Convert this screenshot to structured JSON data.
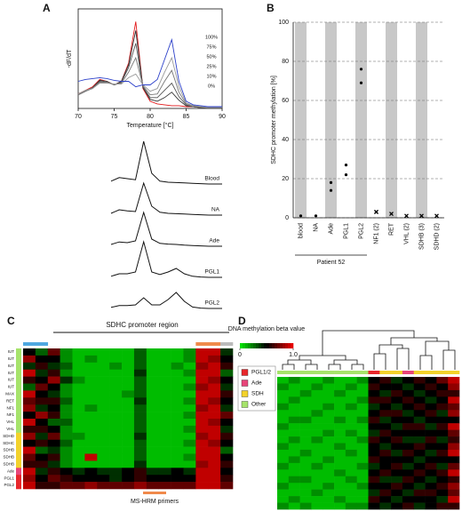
{
  "chart_data": [
    {
      "type": "line",
      "panel": "A",
      "xlabel": "Temperature [°C]",
      "ylabel": "-dF/dT",
      "x": [
        70,
        71,
        72,
        73,
        74,
        75,
        76,
        77,
        78,
        79,
        80,
        81,
        82,
        83,
        84,
        85,
        86,
        87,
        88,
        89,
        90
      ],
      "xlim": [
        70,
        90
      ],
      "xticks": [
        70,
        75,
        80,
        85,
        90
      ],
      "ylim": [
        0,
        11
      ],
      "series": [
        {
          "name": "0%",
          "color": "#e31a1c",
          "values": [
            1.6,
            2.0,
            2.4,
            3.2,
            3.0,
            2.6,
            3.0,
            5.0,
            9.6,
            2.2,
            0.8,
            0.5,
            0.4,
            0.3,
            0.3,
            0.2,
            0.2,
            0.1,
            0.1,
            0.1,
            0.1
          ]
        },
        {
          "name": "10%",
          "color": "#333333",
          "values": [
            1.5,
            1.9,
            2.3,
            3.1,
            3.0,
            2.6,
            3.0,
            4.8,
            8.6,
            2.3,
            1.0,
            0.8,
            1.2,
            1.8,
            0.9,
            0.3,
            0.2,
            0.1,
            0.1,
            0.1,
            0.1
          ]
        },
        {
          "name": "25%",
          "color": "#555555",
          "values": [
            1.5,
            1.9,
            2.3,
            3.0,
            2.9,
            2.6,
            2.9,
            4.5,
            7.2,
            2.4,
            1.2,
            1.2,
            2.0,
            2.8,
            1.3,
            0.4,
            0.2,
            0.1,
            0.1,
            0.1,
            0.1
          ]
        },
        {
          "name": "50%",
          "color": "#777777",
          "values": [
            1.5,
            1.9,
            2.2,
            2.9,
            2.9,
            2.6,
            2.8,
            4.0,
            5.6,
            2.5,
            1.5,
            1.6,
            3.0,
            4.2,
            1.8,
            0.5,
            0.3,
            0.2,
            0.1,
            0.1,
            0.1
          ]
        },
        {
          "name": "75%",
          "color": "#999999",
          "values": [
            1.6,
            2.0,
            2.2,
            2.8,
            2.8,
            2.7,
            2.7,
            3.4,
            3.8,
            2.6,
            1.9,
            2.2,
            4.0,
            5.6,
            2.4,
            0.6,
            0.3,
            0.2,
            0.1,
            0.1,
            0.1
          ]
        },
        {
          "name": "100%",
          "color": "#2b3fc9",
          "values": [
            3.0,
            3.2,
            3.3,
            3.4,
            3.3,
            3.1,
            3.0,
            3.0,
            2.4,
            2.6,
            2.6,
            3.2,
            5.4,
            7.6,
            3.0,
            0.8,
            0.4,
            0.3,
            0.2,
            0.2,
            0.2
          ]
        }
      ]
    },
    {
      "type": "line",
      "x": [
        74,
        75,
        76,
        77,
        78,
        79,
        80,
        81,
        82,
        83,
        84,
        85,
        86
      ],
      "series": [
        {
          "name": "Blood",
          "color": "#111111",
          "values": [
            0.8,
            1.8,
            1.5,
            1.2,
            12,
            3,
            0.8,
            0.5,
            0.4,
            0.3,
            0.2,
            0.1,
            0
          ]
        },
        {
          "name": "NA",
          "color": "#111111",
          "values": [
            0.5,
            1.5,
            1.2,
            1.0,
            9,
            2.5,
            0.8,
            0.5,
            0.4,
            0.3,
            0.2,
            0.1,
            0
          ]
        },
        {
          "name": "Ade",
          "color": "#111111",
          "values": [
            0.5,
            1.2,
            1.0,
            1.5,
            9.5,
            2,
            0.8,
            0.6,
            0.5,
            0.3,
            0.2,
            0.1,
            0
          ]
        },
        {
          "name": "PGL1",
          "color": "#111111",
          "values": [
            0.3,
            1.0,
            1.0,
            1.5,
            10,
            1.5,
            0.8,
            1.5,
            2.5,
            1.0,
            0.3,
            0.1,
            0
          ]
        },
        {
          "name": "PGL2",
          "color": "#111111",
          "values": [
            0.3,
            0.8,
            0.8,
            1.0,
            3,
            1,
            1,
            2.5,
            4.5,
            2,
            0.4,
            0.1,
            0
          ]
        }
      ]
    },
    {
      "type": "scatter",
      "panel": "B",
      "ylabel": "SDHC promoter methylation [%]",
      "group_label": "Patient 52",
      "categories": [
        "blood",
        "NA",
        "Ade",
        "PGL1",
        "PGL2",
        "NF1 (2)",
        "RET",
        "VHL (2)",
        "SDHB (3)",
        "SDHD (2)"
      ],
      "values": [
        [
          1
        ],
        [
          1
        ],
        [
          18,
          14
        ],
        [
          27,
          22
        ],
        [
          76,
          69
        ],
        [
          3,
          3
        ],
        [
          2
        ],
        [
          1
        ],
        [
          1
        ],
        [
          1
        ]
      ],
      "markers": [
        "dot",
        "dot",
        "dot",
        "dot",
        "dot",
        "x",
        "x",
        "x",
        "x",
        "x"
      ],
      "color": "#000000",
      "shade_color": "#c8c8c8",
      "ylim": [
        0,
        100
      ],
      "yticks": [
        0,
        20,
        40,
        60,
        80,
        100
      ],
      "grid": true
    },
    {
      "type": "heatmap",
      "panel": "C",
      "title": "SDHC promoter region",
      "annotation": "MS-HRM primers",
      "zlim": [
        0,
        1
      ],
      "row_labels": [
        "IUT",
        "IUT",
        "IUT",
        "IUT",
        "IUT",
        "IUT",
        "MAX",
        "RET",
        "NF1",
        "NF1",
        "VHL",
        "VHL",
        "SDHD",
        "SDHC",
        "SDHB",
        "SDHB",
        "SDHB",
        "Ade",
        "PGL1",
        "PGL2"
      ],
      "row_colors": [
        "#a6e36b",
        "#a6e36b",
        "#a6e36b",
        "#a6e36b",
        "#a6e36b",
        "#a6e36b",
        "#a6e36b",
        "#a6e36b",
        "#a6e36b",
        "#a6e36b",
        "#a6e36b",
        "#a6e36b",
        "#f3d22b",
        "#f3d22b",
        "#f3d22b",
        "#f3d22b",
        "#f3d22b",
        "#e8457a",
        "#e8262b",
        "#e8262b"
      ],
      "col_colors": [
        "#4fa8e0",
        "#4fa8e0",
        null,
        null,
        null,
        null,
        null,
        null,
        null,
        null,
        null,
        null,
        null,
        null,
        "#f08a4b",
        "#f08a4b",
        "#bbbbbb"
      ],
      "z": [
        [
          0.5,
          0.3,
          0.7,
          0.2,
          0.1,
          0.1,
          0.1,
          0.1,
          0.1,
          0.3,
          0.1,
          0.1,
          0.1,
          0.2,
          0.9,
          0.9,
          0.4
        ],
        [
          0.8,
          0.5,
          0.5,
          0.2,
          0.1,
          0.2,
          0.1,
          0.1,
          0.1,
          0.3,
          0.1,
          0.1,
          0.1,
          0.2,
          0.9,
          0.8,
          0.5
        ],
        [
          0.4,
          0.6,
          0.4,
          0.3,
          0.1,
          0.1,
          0.1,
          0.2,
          0.1,
          0.3,
          0.1,
          0.1,
          0.2,
          0.1,
          0.8,
          0.9,
          0.6
        ],
        [
          0.9,
          0.4,
          0.6,
          0.2,
          0.1,
          0.1,
          0.1,
          0.1,
          0.1,
          0.4,
          0.1,
          0.1,
          0.1,
          0.2,
          0.9,
          0.9,
          0.3
        ],
        [
          0.6,
          0.5,
          0.8,
          0.4,
          0.2,
          0.1,
          0.1,
          0.1,
          0.1,
          0.3,
          0.1,
          0.1,
          0.1,
          0.1,
          0.9,
          0.8,
          0.5
        ],
        [
          0.3,
          0.7,
          0.5,
          0.2,
          0.1,
          0.1,
          0.1,
          0.1,
          0.1,
          0.3,
          0.1,
          0.1,
          0.1,
          0.2,
          0.8,
          0.9,
          0.4
        ],
        [
          0.9,
          0.5,
          0.4,
          0.2,
          0.1,
          0.1,
          0.1,
          0.1,
          0.2,
          0.3,
          0.1,
          0.1,
          0.1,
          0.1,
          0.9,
          0.9,
          0.6
        ],
        [
          0.7,
          0.6,
          0.6,
          0.3,
          0.1,
          0.1,
          0.1,
          0.1,
          0.1,
          0.4,
          0.1,
          0.1,
          0.1,
          0.2,
          0.9,
          0.8,
          0.5
        ],
        [
          0.8,
          0.4,
          0.5,
          0.2,
          0.1,
          0.2,
          0.1,
          0.1,
          0.1,
          0.3,
          0.1,
          0.1,
          0.1,
          0.1,
          0.8,
          0.9,
          0.4
        ],
        [
          0.5,
          0.8,
          0.6,
          0.2,
          0.1,
          0.1,
          0.1,
          0.1,
          0.1,
          0.3,
          0.1,
          0.1,
          0.1,
          0.2,
          0.9,
          0.9,
          0.7
        ],
        [
          0.9,
          0.5,
          0.3,
          0.3,
          0.1,
          0.1,
          0.1,
          0.1,
          0.1,
          0.3,
          0.1,
          0.1,
          0.1,
          0.1,
          0.9,
          0.8,
          0.5
        ],
        [
          0.6,
          0.6,
          0.5,
          0.2,
          0.1,
          0.1,
          0.1,
          0.1,
          0.1,
          0.3,
          0.1,
          0.1,
          0.1,
          0.2,
          0.9,
          0.9,
          0.4
        ],
        [
          0.8,
          0.4,
          0.7,
          0.2,
          0.2,
          0.1,
          0.1,
          0.1,
          0.1,
          0.4,
          0.1,
          0.1,
          0.1,
          0.1,
          0.8,
          0.9,
          0.6
        ],
        [
          0.5,
          0.6,
          0.5,
          0.3,
          0.1,
          0.1,
          0.1,
          0.1,
          0.1,
          0.3,
          0.1,
          0.1,
          0.1,
          0.2,
          0.9,
          0.8,
          0.5
        ],
        [
          0.9,
          0.3,
          0.4,
          0.2,
          0.1,
          0.1,
          0.1,
          0.1,
          0.1,
          0.3,
          0.1,
          0.1,
          0.1,
          0.1,
          0.9,
          0.9,
          0.3
        ],
        [
          0.7,
          0.5,
          0.6,
          0.2,
          0.1,
          0.9,
          0.1,
          0.1,
          0.1,
          0.3,
          0.1,
          0.1,
          0.1,
          0.2,
          0.9,
          0.9,
          0.5
        ],
        [
          0.6,
          0.6,
          0.4,
          0.2,
          0.1,
          0.1,
          0.1,
          0.1,
          0.1,
          0.4,
          0.1,
          0.1,
          0.1,
          0.1,
          0.8,
          0.9,
          0.6
        ],
        [
          0.9,
          0.4,
          0.6,
          0.5,
          0.4,
          0.5,
          0.4,
          0.4,
          0.5,
          0.6,
          0.4,
          0.4,
          0.5,
          0.4,
          0.9,
          0.9,
          0.5
        ],
        [
          0.8,
          0.5,
          0.7,
          0.6,
          0.5,
          0.5,
          0.5,
          0.4,
          0.5,
          0.6,
          0.5,
          0.5,
          0.5,
          0.5,
          0.9,
          0.9,
          0.6
        ],
        [
          0.9,
          0.6,
          0.6,
          0.7,
          0.7,
          0.8,
          0.7,
          0.7,
          0.7,
          0.8,
          0.7,
          0.7,
          0.7,
          0.7,
          0.9,
          0.9,
          0.7
        ]
      ]
    },
    {
      "type": "heatmap",
      "panel": "D",
      "zlim": [
        0,
        1
      ],
      "colorbar": {
        "label": "DNA methylation beta value",
        "ticks": [
          0,
          {
            "value": 1,
            "label": "1.0"
          }
        ]
      },
      "legend": [
        {
          "name": "PGL1/2",
          "color": "#e8262b"
        },
        {
          "name": "Ade",
          "color": "#e8457a"
        },
        {
          "name": "SDH",
          "color": "#f3d22b"
        },
        {
          "name": "Other",
          "color": "#a6e36b"
        }
      ],
      "col_colors": [
        "#a6e36b",
        "#a6e36b",
        "#a6e36b",
        "#a6e36b",
        "#a6e36b",
        "#a6e36b",
        "#a6e36b",
        "#a6e36b",
        "#e8262b",
        "#f3d22b",
        "#f3d22b",
        "#e8457a",
        "#f3d22b",
        "#f3d22b",
        "#f3d22b",
        "#f3d22b"
      ],
      "z": [
        [
          0.1,
          0.2,
          0.1,
          0.1,
          0.2,
          0.1,
          0.1,
          0.2,
          0.5,
          0.6,
          0.4,
          0.5,
          0.6,
          0.5,
          0.7,
          0.9
        ],
        [
          0.2,
          0.1,
          0.1,
          0.2,
          0.1,
          0.1,
          0.2,
          0.1,
          0.6,
          0.5,
          0.5,
          0.4,
          0.5,
          0.6,
          0.5,
          0.8
        ],
        [
          0.1,
          0.1,
          0.2,
          0.1,
          0.1,
          0.2,
          0.1,
          0.1,
          0.5,
          0.4,
          0.6,
          0.5,
          0.4,
          0.5,
          0.6,
          0.6
        ],
        [
          0.1,
          0.2,
          0.1,
          0.1,
          0.1,
          0.1,
          0.1,
          0.2,
          0.6,
          0.6,
          0.5,
          0.6,
          0.5,
          0.4,
          0.5,
          0.9
        ],
        [
          0.2,
          0.1,
          0.1,
          0.1,
          0.2,
          0.1,
          0.2,
          0.1,
          0.4,
          0.5,
          0.4,
          0.5,
          0.6,
          0.5,
          0.6,
          0.7
        ],
        [
          0.1,
          0.1,
          0.1,
          0.2,
          0.1,
          0.1,
          0.1,
          0.1,
          0.5,
          0.6,
          0.6,
          0.4,
          0.5,
          0.6,
          0.4,
          0.8
        ],
        [
          0.1,
          0.2,
          0.2,
          0.1,
          0.1,
          0.2,
          0.1,
          0.2,
          0.6,
          0.4,
          0.5,
          0.5,
          0.4,
          0.5,
          0.5,
          0.5
        ],
        [
          0.2,
          0.1,
          0.1,
          0.1,
          0.1,
          0.1,
          0.1,
          0.1,
          0.5,
          0.5,
          0.4,
          0.6,
          0.6,
          0.4,
          0.6,
          0.9
        ],
        [
          0.1,
          0.1,
          0.1,
          0.1,
          0.2,
          0.1,
          0.2,
          0.1,
          0.4,
          0.6,
          0.5,
          0.5,
          0.5,
          0.5,
          0.5,
          0.7
        ],
        [
          0.1,
          0.2,
          0.1,
          0.2,
          0.1,
          0.1,
          0.1,
          0.2,
          0.6,
          0.5,
          0.6,
          0.4,
          0.4,
          0.6,
          0.4,
          0.6
        ],
        [
          0.2,
          0.1,
          0.1,
          0.1,
          0.1,
          0.2,
          0.1,
          0.1,
          0.5,
          0.4,
          0.5,
          0.5,
          0.6,
          0.5,
          0.5,
          0.8
        ],
        [
          0.1,
          0.1,
          0.2,
          0.1,
          0.1,
          0.1,
          0.2,
          0.1,
          0.5,
          0.6,
          0.4,
          0.6,
          0.5,
          0.4,
          0.6,
          0.9
        ],
        [
          0.1,
          0.2,
          0.1,
          0.1,
          0.2,
          0.1,
          0.1,
          0.1,
          0.6,
          0.5,
          0.5,
          0.5,
          0.4,
          0.5,
          0.5,
          0.5
        ],
        [
          0.2,
          0.1,
          0.1,
          0.2,
          0.1,
          0.1,
          0.1,
          0.2,
          0.4,
          0.5,
          0.6,
          0.4,
          0.5,
          0.6,
          0.4,
          0.7
        ],
        [
          0.1,
          0.1,
          0.1,
          0.1,
          0.1,
          0.2,
          0.1,
          0.1,
          0.5,
          0.6,
          0.5,
          0.5,
          0.6,
          0.5,
          0.6,
          0.9
        ],
        [
          0.1,
          0.2,
          0.2,
          0.1,
          0.1,
          0.1,
          0.2,
          0.1,
          0.6,
          0.4,
          0.4,
          0.6,
          0.5,
          0.4,
          0.5,
          0.6
        ],
        [
          0.2,
          0.1,
          0.1,
          0.1,
          0.2,
          0.1,
          0.1,
          0.2,
          0.5,
          0.5,
          0.6,
          0.5,
          0.4,
          0.5,
          0.6,
          0.8
        ],
        [
          0.1,
          0.1,
          0.1,
          0.2,
          0.1,
          0.1,
          0.1,
          0.1,
          0.4,
          0.6,
          0.5,
          0.4,
          0.6,
          0.6,
          0.5,
          0.7
        ],
        [
          0.1,
          0.2,
          0.1,
          0.1,
          0.1,
          0.2,
          0.1,
          0.1,
          0.6,
          0.5,
          0.4,
          0.5,
          0.5,
          0.5,
          0.4,
          0.9
        ],
        [
          0.2,
          0.1,
          0.2,
          0.1,
          0.1,
          0.1,
          0.2,
          0.2,
          0.5,
          0.4,
          0.5,
          0.6,
          0.4,
          0.5,
          0.6,
          0.6
        ]
      ]
    }
  ]
}
